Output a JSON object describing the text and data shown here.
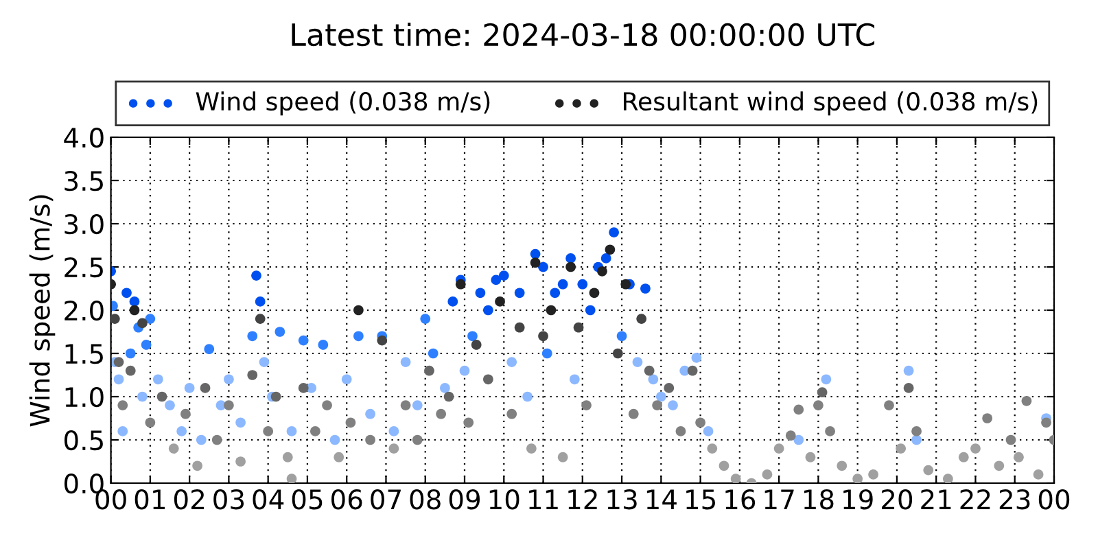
{
  "chart_data": {
    "type": "scatter",
    "title": "Latest time: 2024-03-18 00:00:00 UTC",
    "ylabel": "Wind speed (m/s)",
    "xlim": [
      0,
      24
    ],
    "ylim": [
      0,
      4
    ],
    "xticks": [
      {
        "value": 0,
        "label": "00"
      },
      {
        "value": 1,
        "label": "01"
      },
      {
        "value": 2,
        "label": "02"
      },
      {
        "value": 3,
        "label": "03"
      },
      {
        "value": 4,
        "label": "04"
      },
      {
        "value": 5,
        "label": "05"
      },
      {
        "value": 6,
        "label": "06"
      },
      {
        "value": 7,
        "label": "07"
      },
      {
        "value": 8,
        "label": "08"
      },
      {
        "value": 9,
        "label": "09"
      },
      {
        "value": 10,
        "label": "10"
      },
      {
        "value": 11,
        "label": "11"
      },
      {
        "value": 12,
        "label": "12"
      },
      {
        "value": 13,
        "label": "13"
      },
      {
        "value": 14,
        "label": "14"
      },
      {
        "value": 15,
        "label": "15"
      },
      {
        "value": 16,
        "label": "16"
      },
      {
        "value": 17,
        "label": "17"
      },
      {
        "value": 18,
        "label": "18"
      },
      {
        "value": 19,
        "label": "19"
      },
      {
        "value": 20,
        "label": "20"
      },
      {
        "value": 21,
        "label": "21"
      },
      {
        "value": 22,
        "label": "22"
      },
      {
        "value": 23,
        "label": "23"
      },
      {
        "value": 24,
        "label": "00"
      }
    ],
    "yticks": [
      {
        "value": 0,
        "label": "0.0"
      },
      {
        "value": 0.5,
        "label": "0.5"
      },
      {
        "value": 1,
        "label": "1.0"
      },
      {
        "value": 1.5,
        "label": "1.5"
      },
      {
        "value": 2,
        "label": "2.0"
      },
      {
        "value": 2.5,
        "label": "2.5"
      },
      {
        "value": 3,
        "label": "3.0"
      },
      {
        "value": 3.5,
        "label": "3.5"
      },
      {
        "value": 4,
        "label": "4.0"
      }
    ],
    "grid": true,
    "legend": "top",
    "marker": "circle",
    "series": [
      {
        "name": "Wind speed (0.038 m/s)",
        "color": "#0050f0",
        "x": [
          0.0,
          0.05,
          0.1,
          0.2,
          0.3,
          0.4,
          0.5,
          0.6,
          0.7,
          0.8,
          0.9,
          1.0,
          1.2,
          1.5,
          1.8,
          2.0,
          2.3,
          2.5,
          2.8,
          3.0,
          3.3,
          3.6,
          3.7,
          3.8,
          3.9,
          4.1,
          4.3,
          4.6,
          4.9,
          5.1,
          5.4,
          5.7,
          6.0,
          6.3,
          6.6,
          6.9,
          7.2,
          7.5,
          7.8,
          8.0,
          8.2,
          8.5,
          8.7,
          8.9,
          9.0,
          9.2,
          9.4,
          9.6,
          9.8,
          10.0,
          10.2,
          10.4,
          10.6,
          10.8,
          11.0,
          11.1,
          11.3,
          11.5,
          11.7,
          11.8,
          12.0,
          12.2,
          12.4,
          12.6,
          12.8,
          13.0,
          13.2,
          13.4,
          13.6,
          13.8,
          14.0,
          14.3,
          14.6,
          14.9,
          15.2,
          17.5,
          18.2,
          20.3,
          20.5,
          23.8
        ],
        "values": [
          2.45,
          2.05,
          1.4,
          1.2,
          0.6,
          2.2,
          1.5,
          2.1,
          1.8,
          1.0,
          1.6,
          1.9,
          1.2,
          0.9,
          0.6,
          1.1,
          0.5,
          1.55,
          0.9,
          1.2,
          0.7,
          1.7,
          2.4,
          2.1,
          1.4,
          1.0,
          1.75,
          0.6,
          1.65,
          1.1,
          1.6,
          0.5,
          1.2,
          1.7,
          0.8,
          1.7,
          0.6,
          1.4,
          0.9,
          1.9,
          1.5,
          1.1,
          2.1,
          2.35,
          1.3,
          1.7,
          2.2,
          2.0,
          2.35,
          2.4,
          1.4,
          2.2,
          1.0,
          2.65,
          2.5,
          1.5,
          2.2,
          2.3,
          2.6,
          1.2,
          2.3,
          2.0,
          2.5,
          2.6,
          2.9,
          1.7,
          2.3,
          1.4,
          2.25,
          1.2,
          1.0,
          0.9,
          1.3,
          1.45,
          0.6,
          0.5,
          1.2,
          1.3,
          0.5,
          0.75
        ],
        "colors": [
          "#0050f0",
          "#2f80ff",
          "#8cb8ff",
          "#8cb8ff",
          "#8cb8ff",
          "#0050f0",
          "#2f80ff",
          "#0050f0",
          "#2f80ff",
          "#8cb8ff",
          "#2f80ff",
          "#2f80ff",
          "#8cb8ff",
          "#8cb8ff",
          "#8cb8ff",
          "#8cb8ff",
          "#8cb8ff",
          "#2f80ff",
          "#8cb8ff",
          "#8cb8ff",
          "#8cb8ff",
          "#2f80ff",
          "#0050f0",
          "#0050f0",
          "#8cb8ff",
          "#8cb8ff",
          "#2f80ff",
          "#8cb8ff",
          "#2f80ff",
          "#8cb8ff",
          "#2f80ff",
          "#8cb8ff",
          "#8cb8ff",
          "#2f80ff",
          "#8cb8ff",
          "#2f80ff",
          "#8cb8ff",
          "#8cb8ff",
          "#8cb8ff",
          "#2f80ff",
          "#2f80ff",
          "#8cb8ff",
          "#0050f0",
          "#0050f0",
          "#8cb8ff",
          "#2f80ff",
          "#0050f0",
          "#0050f0",
          "#0050f0",
          "#0050f0",
          "#8cb8ff",
          "#0050f0",
          "#8cb8ff",
          "#0050f0",
          "#0050f0",
          "#2f80ff",
          "#0050f0",
          "#0050f0",
          "#0050f0",
          "#8cb8ff",
          "#0050f0",
          "#0050f0",
          "#0050f0",
          "#0050f0",
          "#0050f0",
          "#2f80ff",
          "#0050f0",
          "#8cb8ff",
          "#0050f0",
          "#8cb8ff",
          "#8cb8ff",
          "#8cb8ff",
          "#8cb8ff",
          "#8cb8ff",
          "#8cb8ff",
          "#8cb8ff",
          "#8cb8ff",
          "#8cb8ff",
          "#8cb8ff",
          "#8cb8ff"
        ]
      },
      {
        "name": "Resultant wind speed (0.038 m/s)",
        "color": "#222222",
        "x": [
          0.0,
          0.1,
          0.2,
          0.3,
          0.5,
          0.6,
          0.8,
          1.0,
          1.3,
          1.6,
          1.9,
          2.2,
          2.4,
          2.7,
          3.0,
          3.3,
          3.6,
          3.8,
          4.0,
          4.2,
          4.5,
          4.6,
          4.9,
          5.2,
          5.5,
          5.8,
          6.1,
          6.3,
          6.6,
          6.9,
          7.2,
          7.5,
          7.8,
          8.1,
          8.4,
          8.6,
          8.9,
          9.1,
          9.3,
          9.6,
          9.9,
          10.2,
          10.4,
          10.7,
          10.8,
          11.0,
          11.2,
          11.5,
          11.7,
          11.9,
          12.1,
          12.3,
          12.5,
          12.7,
          12.9,
          13.1,
          13.3,
          13.5,
          13.7,
          13.9,
          14.2,
          14.5,
          14.8,
          15.0,
          15.3,
          15.6,
          15.9,
          16.3,
          16.7,
          17.0,
          17.3,
          17.5,
          17.8,
          18.0,
          18.1,
          18.3,
          18.6,
          19.0,
          19.4,
          19.8,
          20.1,
          20.3,
          20.5,
          20.8,
          21.3,
          21.7,
          22.0,
          22.3,
          22.6,
          22.9,
          23.1,
          23.3,
          23.6,
          23.8,
          24.0
        ],
        "values": [
          2.3,
          1.9,
          1.4,
          0.9,
          1.3,
          2.0,
          1.85,
          0.7,
          1.0,
          0.4,
          0.8,
          0.2,
          1.1,
          0.5,
          0.9,
          0.25,
          1.25,
          1.9,
          0.6,
          1.0,
          0.3,
          0.05,
          1.1,
          0.6,
          0.9,
          0.3,
          0.7,
          2.0,
          0.5,
          1.65,
          0.4,
          0.9,
          0.5,
          1.3,
          0.8,
          1.0,
          2.3,
          0.7,
          1.6,
          1.2,
          2.1,
          0.8,
          1.8,
          0.4,
          2.55,
          1.7,
          2.0,
          0.3,
          2.5,
          1.8,
          0.9,
          2.2,
          2.45,
          2.7,
          1.5,
          2.3,
          0.8,
          1.9,
          1.3,
          0.9,
          1.1,
          0.6,
          1.3,
          0.7,
          0.4,
          0.2,
          0.05,
          0.0,
          0.1,
          0.4,
          0.55,
          0.85,
          0.3,
          0.9,
          1.05,
          0.6,
          0.2,
          0.05,
          0.1,
          0.9,
          0.4,
          1.1,
          0.6,
          0.15,
          0.05,
          0.3,
          0.4,
          0.75,
          0.2,
          0.5,
          0.3,
          0.95,
          0.1,
          0.7,
          0.5
        ],
        "colors": [
          "#222222",
          "#444444",
          "#666666",
          "#808080",
          "#666666",
          "#222222",
          "#444444",
          "#808080",
          "#666666",
          "#a0a0a0",
          "#808080",
          "#a0a0a0",
          "#666666",
          "#808080",
          "#808080",
          "#a0a0a0",
          "#666666",
          "#444444",
          "#808080",
          "#666666",
          "#a0a0a0",
          "#a0a0a0",
          "#666666",
          "#808080",
          "#808080",
          "#a0a0a0",
          "#808080",
          "#222222",
          "#808080",
          "#444444",
          "#a0a0a0",
          "#808080",
          "#808080",
          "#666666",
          "#808080",
          "#666666",
          "#222222",
          "#808080",
          "#444444",
          "#666666",
          "#222222",
          "#808080",
          "#444444",
          "#a0a0a0",
          "#222222",
          "#444444",
          "#222222",
          "#a0a0a0",
          "#222222",
          "#444444",
          "#808080",
          "#222222",
          "#222222",
          "#222222",
          "#444444",
          "#222222",
          "#808080",
          "#444444",
          "#666666",
          "#808080",
          "#666666",
          "#808080",
          "#666666",
          "#808080",
          "#a0a0a0",
          "#a0a0a0",
          "#a0a0a0",
          "#a0a0a0",
          "#a0a0a0",
          "#a0a0a0",
          "#808080",
          "#808080",
          "#a0a0a0",
          "#808080",
          "#666666",
          "#808080",
          "#a0a0a0",
          "#a0a0a0",
          "#a0a0a0",
          "#808080",
          "#a0a0a0",
          "#666666",
          "#808080",
          "#a0a0a0",
          "#a0a0a0",
          "#a0a0a0",
          "#a0a0a0",
          "#808080",
          "#a0a0a0",
          "#808080",
          "#a0a0a0",
          "#808080",
          "#a0a0a0",
          "#808080",
          "#808080"
        ]
      }
    ]
  }
}
